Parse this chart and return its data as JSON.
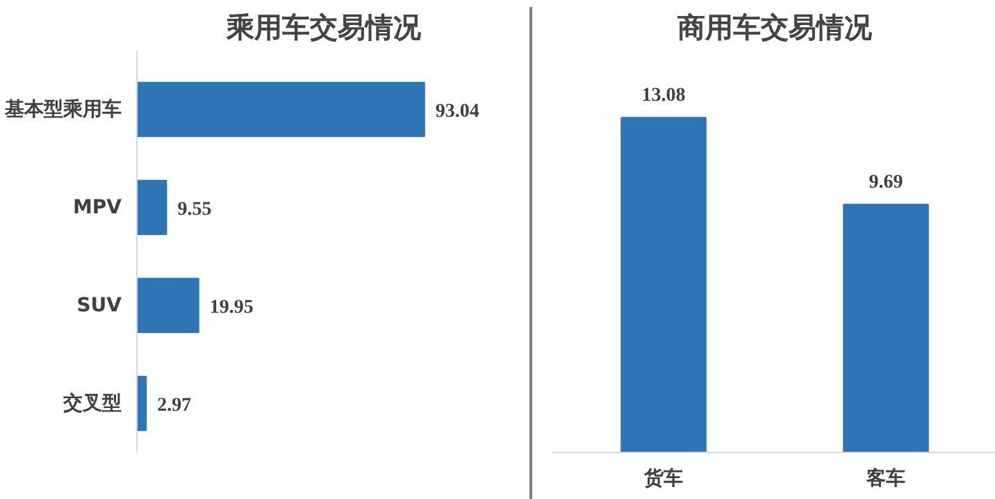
{
  "chart_data": [
    {
      "type": "bar",
      "title": "乘用车交易情况",
      "orientation": "horizontal",
      "categories": [
        "基本型乘用车",
        "MPV",
        "SUV",
        "交叉型"
      ],
      "values": [
        93.04,
        9.55,
        19.95,
        2.97
      ],
      "color": "#2e75b6",
      "data_labels": true,
      "grid": false
    },
    {
      "type": "bar",
      "title": "商用车交易情况",
      "categories": [
        "货车",
        "客车"
      ],
      "values": [
        13.08,
        9.69
      ],
      "color": "#2e75b6",
      "data_labels": true,
      "grid": false
    }
  ]
}
